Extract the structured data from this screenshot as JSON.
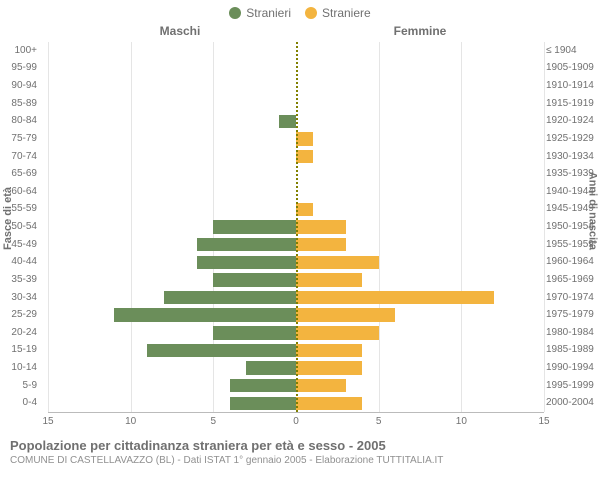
{
  "legend": {
    "male": {
      "label": "Stranieri",
      "color": "#6b8e5a"
    },
    "female": {
      "label": "Straniere",
      "color": "#f3b43f"
    }
  },
  "header": {
    "left": "Maschi",
    "right": "Femmine"
  },
  "ylabels": {
    "left": "Fasce di età",
    "right": "Anni di nascita"
  },
  "caption": {
    "title": "Popolazione per cittadinanza straniera per età e sesso - 2005",
    "sub": "COMUNE DI CASTELLAVAZZO (BL) - Dati ISTAT 1° gennaio 2005 - Elaborazione TUTTITALIA.IT"
  },
  "chart": {
    "type": "population-pyramid",
    "xmax": 15,
    "xticks_left": [
      15,
      10,
      5,
      0
    ],
    "xticks_right": [
      5,
      10,
      15
    ],
    "grid_color": "#e5e5e5",
    "axis_color": "#bbbbbb",
    "center_line_color": "#808000",
    "background_color": "#ffffff",
    "bar_colors": {
      "male": "#6b8e5a",
      "female": "#f3b43f"
    },
    "rows": [
      {
        "age": "100+",
        "birth": "≤ 1904",
        "m": 0,
        "f": 0
      },
      {
        "age": "95-99",
        "birth": "1905-1909",
        "m": 0,
        "f": 0
      },
      {
        "age": "90-94",
        "birth": "1910-1914",
        "m": 0,
        "f": 0
      },
      {
        "age": "85-89",
        "birth": "1915-1919",
        "m": 0,
        "f": 0
      },
      {
        "age": "80-84",
        "birth": "1920-1924",
        "m": 1,
        "f": 0
      },
      {
        "age": "75-79",
        "birth": "1925-1929",
        "m": 0,
        "f": 1
      },
      {
        "age": "70-74",
        "birth": "1930-1934",
        "m": 0,
        "f": 1
      },
      {
        "age": "65-69",
        "birth": "1935-1939",
        "m": 0,
        "f": 0
      },
      {
        "age": "60-64",
        "birth": "1940-1944",
        "m": 0,
        "f": 0
      },
      {
        "age": "55-59",
        "birth": "1945-1949",
        "m": 0,
        "f": 1
      },
      {
        "age": "50-54",
        "birth": "1950-1954",
        "m": 5,
        "f": 3
      },
      {
        "age": "45-49",
        "birth": "1955-1959",
        "m": 6,
        "f": 3
      },
      {
        "age": "40-44",
        "birth": "1960-1964",
        "m": 6,
        "f": 5
      },
      {
        "age": "35-39",
        "birth": "1965-1969",
        "m": 5,
        "f": 4
      },
      {
        "age": "30-34",
        "birth": "1970-1974",
        "m": 8,
        "f": 12
      },
      {
        "age": "25-29",
        "birth": "1975-1979",
        "m": 11,
        "f": 6
      },
      {
        "age": "20-24",
        "birth": "1980-1984",
        "m": 5,
        "f": 5
      },
      {
        "age": "15-19",
        "birth": "1985-1989",
        "m": 9,
        "f": 4
      },
      {
        "age": "10-14",
        "birth": "1990-1994",
        "m": 3,
        "f": 4
      },
      {
        "age": "5-9",
        "birth": "1995-1999",
        "m": 4,
        "f": 3
      },
      {
        "age": "0-4",
        "birth": "2000-2004",
        "m": 4,
        "f": 4
      }
    ]
  }
}
